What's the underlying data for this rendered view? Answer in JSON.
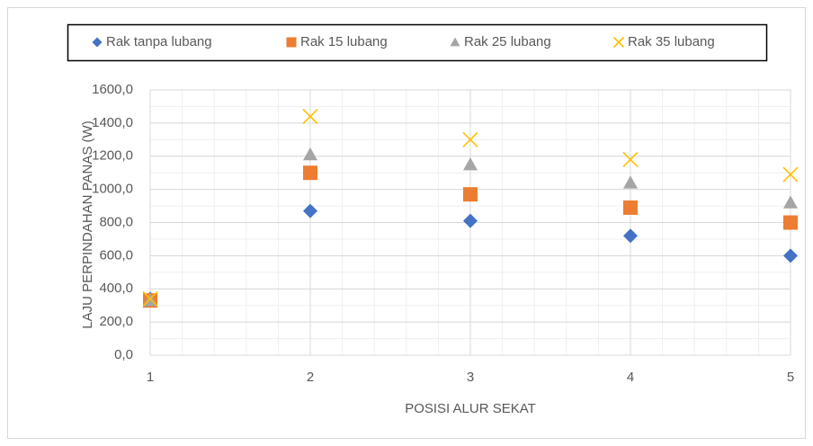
{
  "chart_data": {
    "type": "scatter",
    "x_label": "POSISI ALUR SEKAT",
    "y_label": "LAJU PERPINDAHAN PANAS (W)",
    "x": [
      1,
      2,
      3,
      4,
      5
    ],
    "series": [
      {
        "name": "Rak tanpa lubang",
        "color": "#4472c4",
        "marker": "diamond",
        "values": [
          340,
          870,
          810,
          720,
          600
        ]
      },
      {
        "name": "Rak 15 lubang",
        "color": "#ed7d31",
        "marker": "square",
        "values": [
          330,
          1100,
          970,
          890,
          800
        ]
      },
      {
        "name": "Rak 25 lubang",
        "color": "#a5a5a5",
        "marker": "triangle",
        "values": [
          330,
          1210,
          1150,
          1040,
          920
        ]
      },
      {
        "name": "Rak 35 lubang",
        "color": "#ffc000",
        "marker": "x",
        "values": [
          340,
          1440,
          1300,
          1180,
          1090
        ]
      }
    ],
    "xlim": [
      1,
      5
    ],
    "xticks": [
      1,
      2,
      3,
      4,
      5
    ],
    "ylim": [
      0,
      1600
    ],
    "yticks": [
      {
        "value": 0,
        "label": "0,0"
      },
      {
        "value": 200,
        "label": "200,0"
      },
      {
        "value": 400,
        "label": "400,0"
      },
      {
        "value": 600,
        "label": "600,0"
      },
      {
        "value": 800,
        "label": "800,0"
      },
      {
        "value": 1000,
        "label": "1000,0"
      },
      {
        "value": 1200,
        "label": "1200,0"
      },
      {
        "value": 1400,
        "label": "1400,0"
      },
      {
        "value": 1600,
        "label": "1600,0"
      }
    ],
    "grid": true,
    "x_minor_step": 0.2,
    "y_minor_step": 100,
    "legend": "top"
  }
}
